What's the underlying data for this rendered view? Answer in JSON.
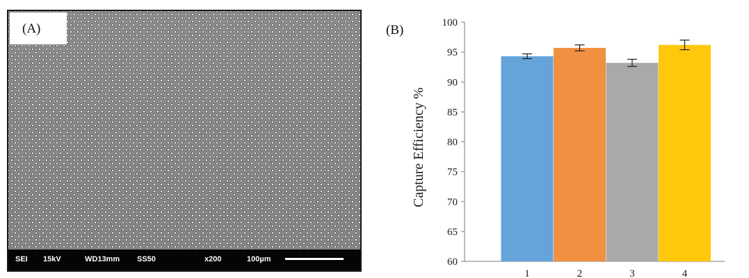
{
  "panel_a": {
    "label": "(A)",
    "info_bar": {
      "mode": "SEI",
      "voltage": "15kV",
      "working_distance": "WD13mm",
      "spot_size": "SS50",
      "magnification": "x200",
      "scale": "100µm"
    }
  },
  "panel_b": {
    "label": "(B)"
  },
  "chart_data": {
    "type": "bar",
    "categories": [
      "1",
      "2",
      "3",
      "4"
    ],
    "values": [
      94.3,
      95.7,
      93.2,
      96.2
    ],
    "errors": [
      0.4,
      0.5,
      0.6,
      0.8
    ],
    "colors": [
      "#64a4db",
      "#f09040",
      "#a9a9a9",
      "#ffc80a"
    ],
    "ylabel": "Capture Efficiency %",
    "xlabel": "",
    "ylim": [
      60,
      100
    ],
    "yticks": [
      60,
      65,
      70,
      75,
      80,
      85,
      90,
      95,
      100
    ],
    "grid": false
  }
}
